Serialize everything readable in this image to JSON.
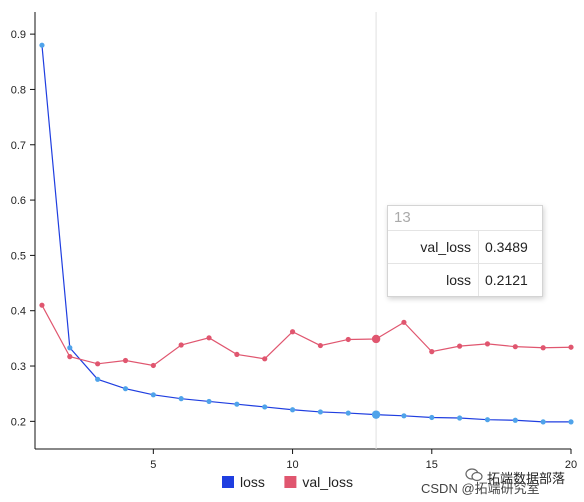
{
  "chart_data": {
    "type": "line",
    "x": [
      1,
      2,
      3,
      4,
      5,
      6,
      7,
      8,
      9,
      10,
      11,
      12,
      13,
      14,
      15,
      16,
      17,
      18,
      19,
      20
    ],
    "series": [
      {
        "name": "loss",
        "color": "#1f3ee0",
        "marker_color": "#4fa3ea",
        "values": [
          0.88,
          0.333,
          0.276,
          0.259,
          0.248,
          0.241,
          0.236,
          0.231,
          0.226,
          0.221,
          0.217,
          0.215,
          0.2121,
          0.21,
          0.207,
          0.206,
          0.203,
          0.202,
          0.199,
          0.199
        ]
      },
      {
        "name": "val_loss",
        "color": "#e0566f",
        "marker_color": "#e0566f",
        "values": [
          0.41,
          0.317,
          0.304,
          0.31,
          0.301,
          0.338,
          0.351,
          0.321,
          0.313,
          0.362,
          0.337,
          0.348,
          0.3489,
          0.379,
          0.326,
          0.336,
          0.34,
          0.335,
          0.333,
          0.334
        ]
      }
    ],
    "xlim": [
      0.75,
      20
    ],
    "ylim": [
      0.15,
      0.94
    ],
    "xticks": [
      5,
      10,
      15,
      20
    ],
    "yticks": [
      0.2,
      0.3,
      0.4,
      0.5,
      0.6,
      0.7,
      0.8,
      0.9
    ],
    "grid": false,
    "legend": "bottom-center",
    "highlight_x": 13
  },
  "tooltip": {
    "title": "13",
    "rows": [
      {
        "name": "val_loss",
        "value": "0.3489"
      },
      {
        "name": "loss",
        "value": "0.2121"
      }
    ]
  },
  "legend": {
    "items": [
      {
        "label": "loss",
        "color": "#1f3ee0"
      },
      {
        "label": "val_loss",
        "color": "#e0566f"
      }
    ]
  },
  "watermark": {
    "badge": "拓端数据部落",
    "text": "CSDN @拓端研究室"
  }
}
